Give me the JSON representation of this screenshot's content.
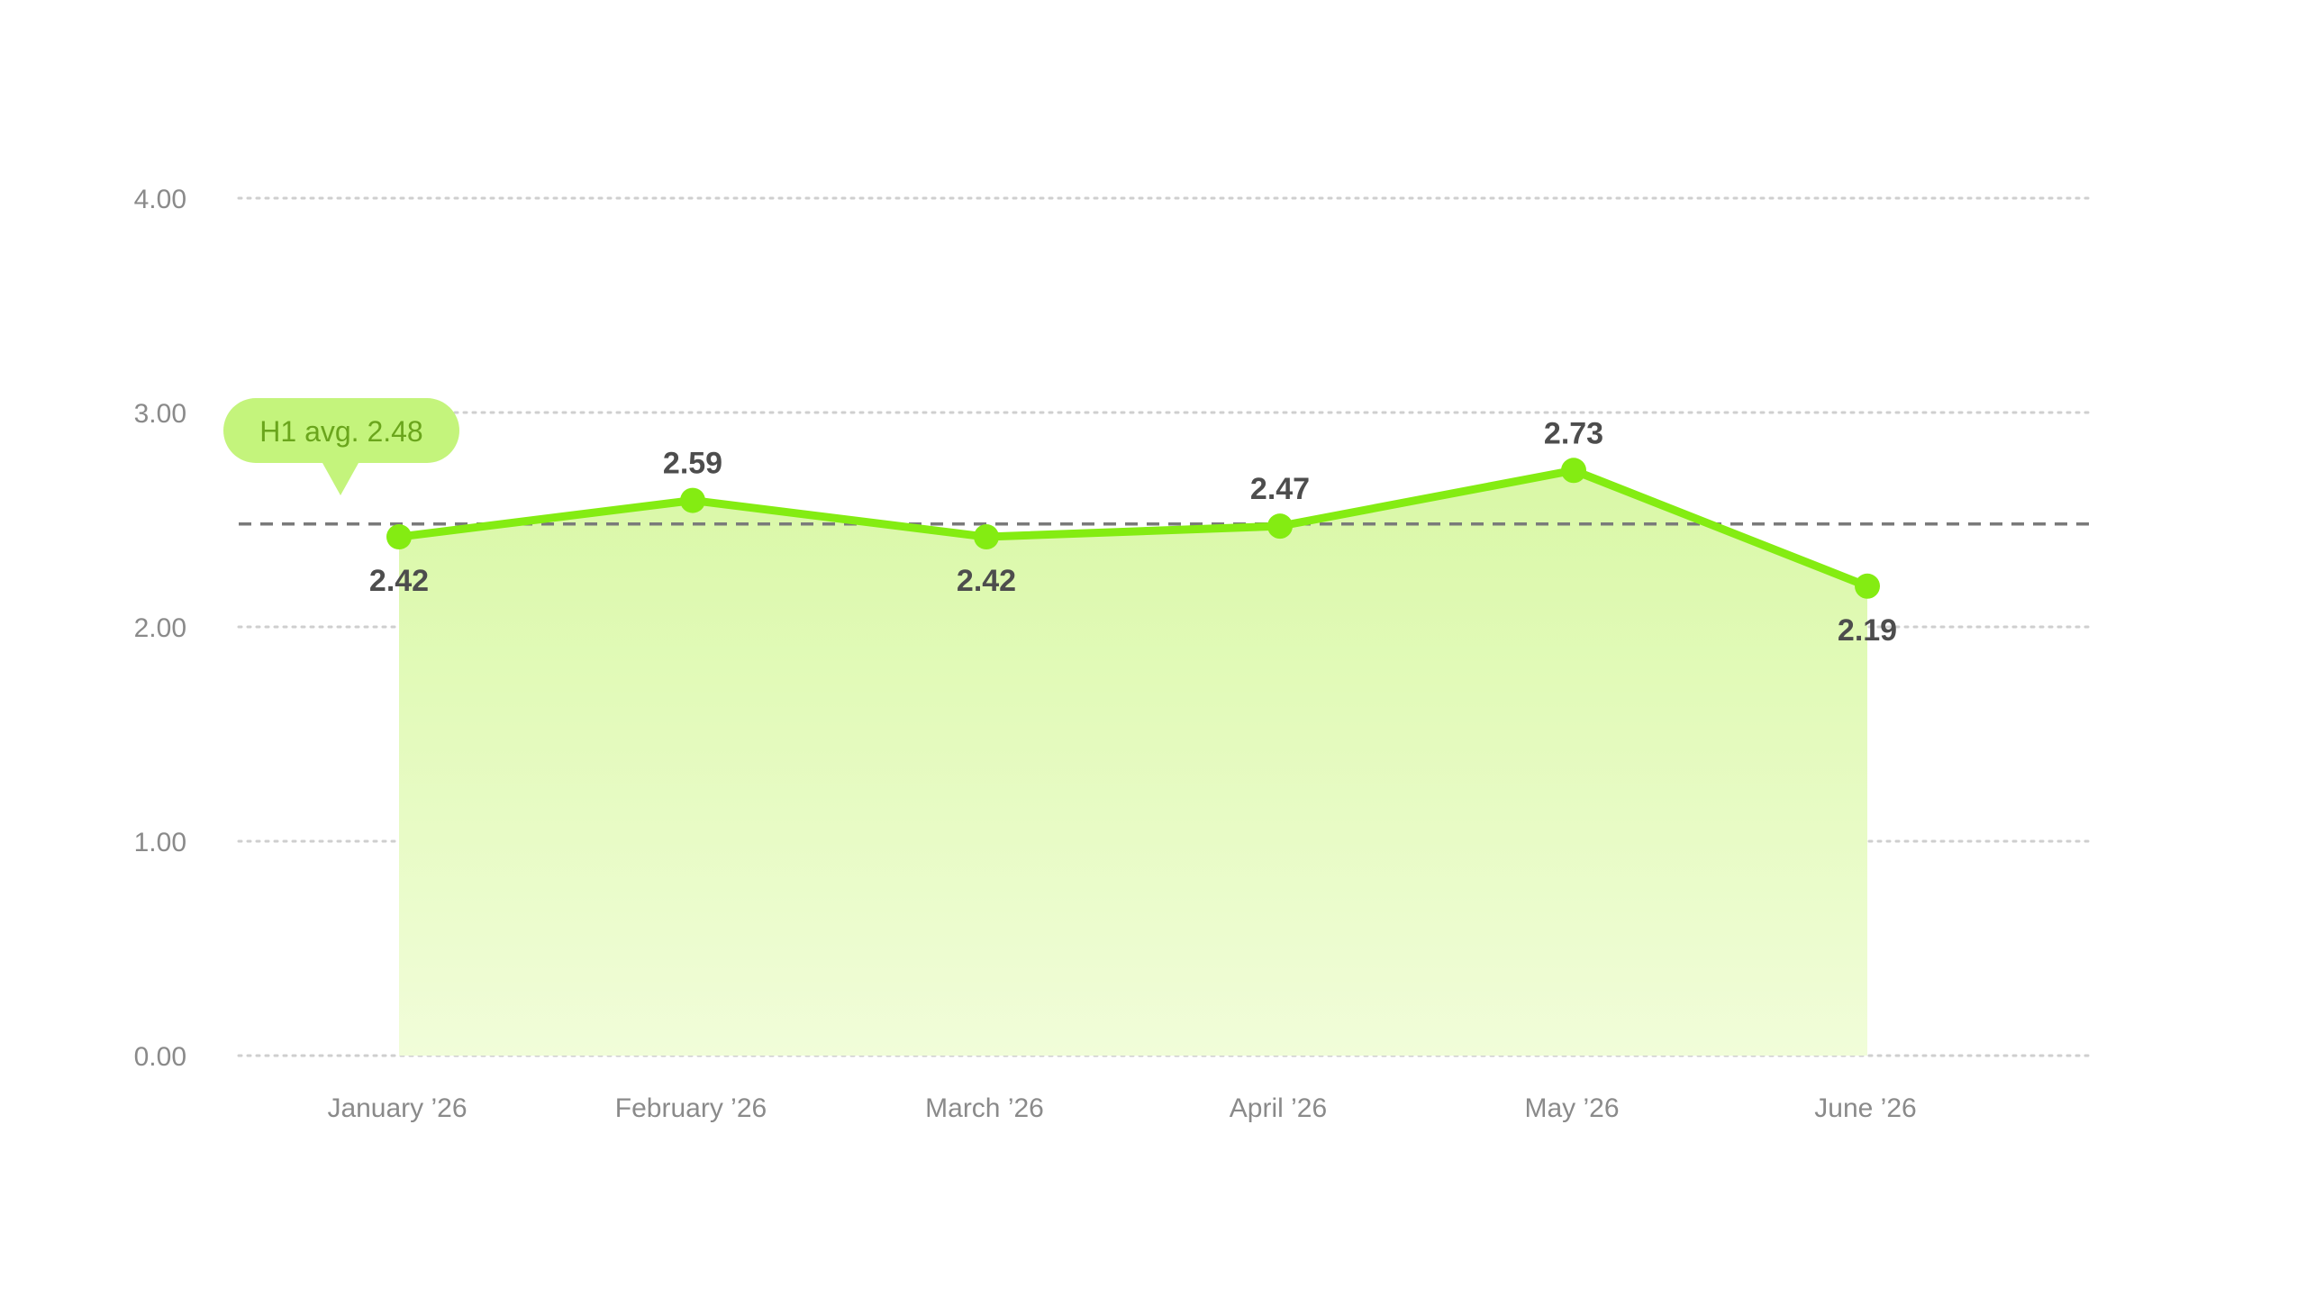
{
  "colors": {
    "line": "#84ec12",
    "area_top": "#d9f8a6",
    "area_bottom": "#f1fdd9",
    "grid": "#cfcfcf",
    "avg_line": "#7a7a7a",
    "avg_badge_bg": "#c4f47c",
    "avg_badge_text": "#6aa51c",
    "tick_text": "#8a8a8a",
    "data_label_text": "#4d4d4d"
  },
  "chart_data": {
    "type": "area",
    "title": "",
    "xlabel": "",
    "ylabel": "",
    "categories": [
      "January ’26",
      "February ’26",
      "March ’26",
      "April ’26",
      "May ’26",
      "June ’26"
    ],
    "series": [
      {
        "values": [
          2.42,
          2.59,
          2.42,
          2.47,
          2.73,
          2.19
        ],
        "data_labels": [
          "2.42",
          "2.59",
          "2.42",
          "2.47",
          "2.73",
          "2.19"
        ],
        "label_positions": [
          "below",
          "above",
          "below",
          "above",
          "above",
          "below"
        ]
      }
    ],
    "ylim": [
      0,
      4
    ],
    "yticks": [
      0,
      1,
      2,
      3,
      4
    ],
    "ytick_labels": [
      "0.00",
      "1.00",
      "2.00",
      "3.00",
      "4.00"
    ],
    "grid": true,
    "grid_style": "dotted",
    "legend": "none",
    "reference_line": {
      "value": 2.48,
      "label": "H1 avg. 2.48",
      "style": "dashed"
    }
  }
}
